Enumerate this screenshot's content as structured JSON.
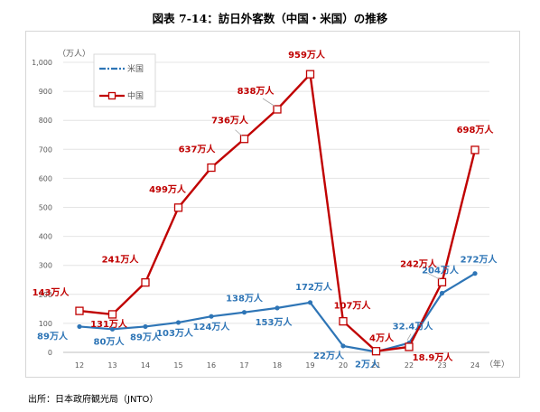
{
  "title": "図表 7-14：訪日外客数（中国・米国）の推移",
  "source": "出所：日本政府観光局（JNTO）",
  "chart_data": {
    "type": "line",
    "y_unit": "（万人）",
    "x_unit": "（年）",
    "ylim": [
      0,
      1000
    ],
    "yticks": [
      "0",
      "100",
      "200",
      "300",
      "400",
      "500",
      "600",
      "700",
      "800",
      "900",
      "1,000"
    ],
    "x": [
      "12",
      "13",
      "14",
      "15",
      "16",
      "17",
      "18",
      "19",
      "20",
      "21",
      "22",
      "23",
      "24"
    ],
    "grid": true,
    "legend_position": "top-left",
    "series": [
      {
        "name": "米国",
        "color": "#2e75b6",
        "values": [
          89,
          80,
          89,
          103,
          124,
          138,
          153,
          172,
          22,
          2,
          32.4,
          204,
          272
        ],
        "labels": [
          "89万人",
          "80万人",
          "89万人",
          "103万人",
          "124万人",
          "138万人",
          "153万人",
          "172万人",
          "22万人",
          "2万人",
          "32.4万人",
          "204万人",
          "272万人"
        ]
      },
      {
        "name": "中国",
        "color": "#c00000",
        "values": [
          143,
          131,
          241,
          499,
          637,
          736,
          838,
          959,
          107,
          4,
          18.9,
          242,
          698
        ],
        "labels": [
          "143万人",
          "131万人",
          "241万人",
          "499万人",
          "637万人",
          "736万人",
          "838万人",
          "959万人",
          "107万人",
          "4万人",
          "18.9万人",
          "242万人",
          "698万人"
        ]
      }
    ]
  }
}
